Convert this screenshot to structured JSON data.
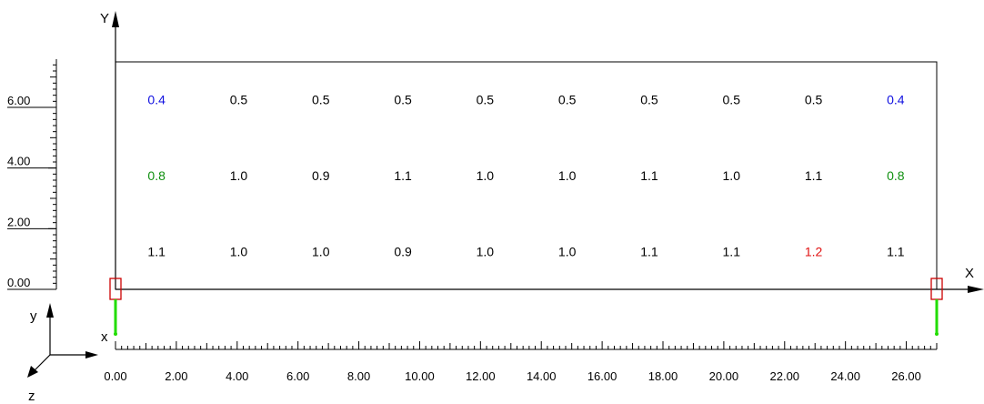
{
  "axes": {
    "global_x_label": "X",
    "global_y_label": "Y",
    "local_y_label": "y",
    "local_x_label": "x",
    "local_z_label": "z"
  },
  "ruler_x": {
    "labels": [
      "0.00",
      "2.00",
      "4.00",
      "6.00",
      "8.00",
      "10.00",
      "12.00",
      "14.00",
      "16.00",
      "18.00",
      "20.00",
      "22.00",
      "24.00",
      "26.00"
    ],
    "max": 27
  },
  "ruler_y": {
    "labels": [
      "0.00",
      "2.00",
      "4.00",
      "6.00"
    ],
    "max": 7.5
  },
  "wall": {
    "width": 27,
    "height": 7.5
  },
  "grid": {
    "columns_x": [
      1.35,
      4.05,
      6.75,
      9.45,
      12.15,
      14.85,
      17.55,
      20.25,
      22.95,
      25.65
    ],
    "rows": [
      {
        "y": 6.25,
        "values": [
          "0.4",
          "0.5",
          "0.5",
          "0.5",
          "0.5",
          "0.5",
          "0.5",
          "0.5",
          "0.5",
          "0.4"
        ],
        "colors": [
          "#1010e0",
          "#000000",
          "#000000",
          "#000000",
          "#000000",
          "#000000",
          "#000000",
          "#000000",
          "#000000",
          "#1010e0"
        ]
      },
      {
        "y": 3.75,
        "values": [
          "0.8",
          "1.0",
          "0.9",
          "1.1",
          "1.0",
          "1.0",
          "1.1",
          "1.0",
          "1.1",
          "0.8"
        ],
        "colors": [
          "#109010",
          "#000000",
          "#000000",
          "#000000",
          "#000000",
          "#000000",
          "#000000",
          "#000000",
          "#000000",
          "#109010"
        ]
      },
      {
        "y": 1.25,
        "values": [
          "1.1",
          "1.0",
          "1.0",
          "0.9",
          "1.0",
          "1.0",
          "1.1",
          "1.1",
          "1.2",
          "1.1"
        ],
        "colors": [
          "#000000",
          "#000000",
          "#000000",
          "#000000",
          "#000000",
          "#000000",
          "#000000",
          "#000000",
          "#e01010",
          "#000000"
        ]
      }
    ]
  },
  "supports": [
    {
      "x": 0
    },
    {
      "x": 27
    }
  ],
  "colors": {
    "support_box": "#cc0000",
    "support_arrow": "#22dd00"
  }
}
